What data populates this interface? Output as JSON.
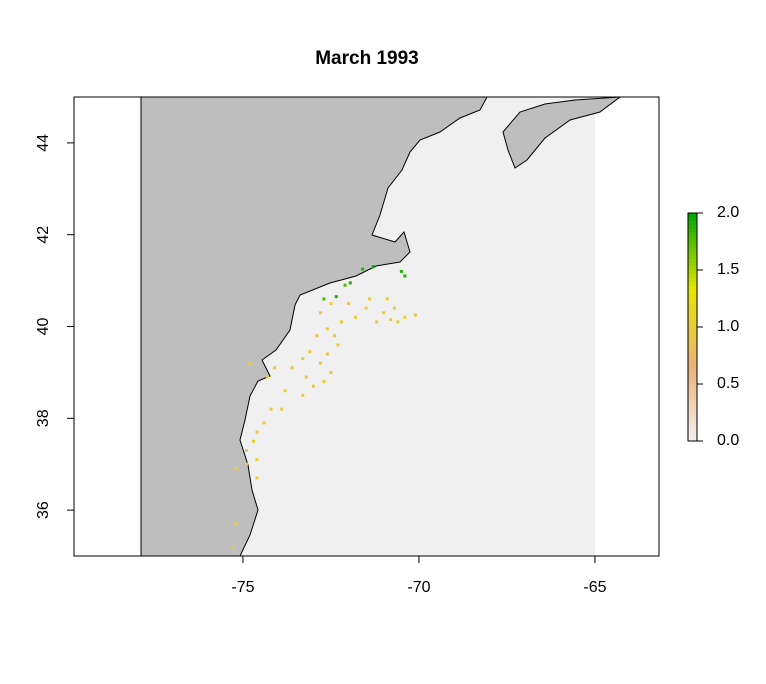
{
  "chart_data": {
    "type": "scatter",
    "title": "March 1993",
    "xlim": [
      -79.8,
      -63.18
    ],
    "ylim": [
      35,
      45
    ],
    "xticks": [
      -75,
      -70,
      -65
    ],
    "yticks": [
      36,
      38,
      40,
      42,
      44
    ],
    "x": [
      -71.6,
      -71.3,
      -70.4,
      -72.35,
      -72.7,
      -71.95,
      -72.1,
      -70.5,
      -72.5,
      -72.0,
      -71.4,
      -70.9,
      -70.7,
      -70.4,
      -70.1,
      -70.6,
      -70.8,
      -71.5,
      -71.0,
      -71.8,
      -72.2,
      -72.8,
      -72.6,
      -72.9,
      -72.3,
      -72.6,
      -73.1,
      -72.8,
      -73.3,
      -73.6,
      -73.2,
      -73.0,
      -72.5,
      -73.8,
      -74.2,
      -73.9,
      -74.4,
      -74.6,
      -74.7,
      -74.9,
      -74.9,
      -74.6,
      -75.2,
      -74.6,
      -75.2,
      -75.3,
      -74.8,
      -74.3,
      -74.1,
      -72.7,
      -73.3,
      -72.4,
      -71.2
    ],
    "y": [
      41.25,
      41.3,
      41.1,
      40.65,
      40.6,
      40.95,
      40.9,
      41.2,
      40.5,
      40.5,
      40.6,
      40.6,
      40.4,
      40.2,
      40.25,
      40.1,
      40.15,
      40.4,
      40.3,
      40.2,
      40.1,
      40.3,
      39.95,
      39.8,
      39.6,
      39.4,
      39.45,
      39.2,
      39.3,
      39.1,
      38.9,
      38.7,
      39.0,
      38.6,
      38.2,
      38.2,
      37.9,
      37.7,
      37.5,
      37.3,
      37.0,
      37.1,
      36.9,
      36.7,
      35.7,
      35.2,
      39.2,
      38.9,
      39.1,
      38.8,
      38.5,
      39.8,
      40.1
    ],
    "values": [
      1.9,
      2.0,
      1.9,
      1.9,
      1.8,
      1.9,
      1.8,
      1.9,
      1.05,
      1.0,
      1.0,
      1.05,
      1.0,
      1.05,
      1.0,
      1.0,
      1.0,
      1.05,
      1.0,
      1.0,
      1.05,
      1.0,
      1.0,
      1.0,
      1.05,
      1.0,
      1.0,
      1.0,
      1.05,
      1.0,
      1.0,
      1.0,
      1.0,
      1.05,
      1.0,
      1.0,
      1.0,
      1.0,
      1.05,
      1.0,
      1.0,
      1.0,
      1.05,
      1.0,
      1.0,
      1.0,
      1.0,
      1.0,
      1.05,
      1.0,
      1.0,
      1.0,
      1.0
    ],
    "colorbar": {
      "lim": [
        0,
        2
      ],
      "ticks": [
        {
          "value": 0,
          "label": "0.0"
        },
        {
          "value": 0.5,
          "label": "0.5"
        },
        {
          "value": 1,
          "label": "1.0"
        },
        {
          "value": 1.5,
          "label": "1.5"
        },
        {
          "value": 2,
          "label": "2.0"
        }
      ],
      "colors": [
        "#f2f2f2",
        "#ecb176",
        "#e6e600",
        "#00a600"
      ]
    }
  }
}
